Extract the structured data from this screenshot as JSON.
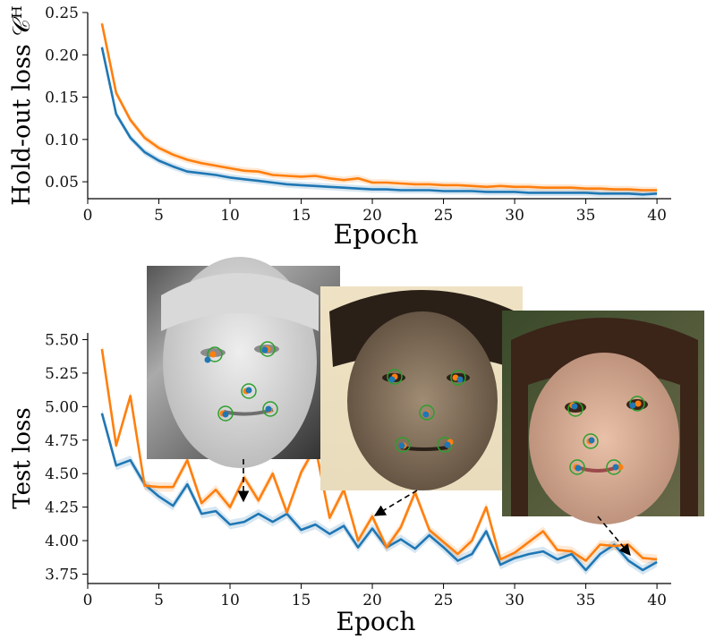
{
  "colors": {
    "series_blue": "#1f77b4",
    "series_orange": "#ff7f0e",
    "landmark_green": "#2ca02c"
  },
  "chart_data": [
    {
      "type": "line",
      "xlabel": "Epoch",
      "ylabel": "Hold-out loss 𝒞ᴴ",
      "xlim": [
        0,
        41
      ],
      "ylim": [
        0.03,
        0.25
      ],
      "xticks": [
        0,
        5,
        10,
        15,
        20,
        25,
        30,
        35,
        40
      ],
      "yticks": [
        0.05,
        0.1,
        0.15,
        0.2,
        0.25
      ],
      "ytick_labels": [
        "0.05",
        "0.10",
        "0.15",
        "0.20",
        "0.25"
      ],
      "grid": false,
      "x": [
        1,
        2,
        3,
        4,
        5,
        6,
        7,
        8,
        9,
        10,
        11,
        12,
        13,
        14,
        15,
        16,
        17,
        18,
        19,
        20,
        21,
        22,
        23,
        24,
        25,
        26,
        27,
        28,
        29,
        30,
        31,
        32,
        33,
        34,
        35,
        36,
        37,
        38,
        39,
        40
      ],
      "series": [
        {
          "color": "#1f77b4",
          "values": [
            0.209,
            0.13,
            0.102,
            0.085,
            0.075,
            0.068,
            0.062,
            0.06,
            0.058,
            0.055,
            0.053,
            0.051,
            0.049,
            0.047,
            0.046,
            0.045,
            0.044,
            0.043,
            0.042,
            0.041,
            0.041,
            0.04,
            0.04,
            0.04,
            0.039,
            0.039,
            0.039,
            0.038,
            0.038,
            0.038,
            0.037,
            0.037,
            0.037,
            0.037,
            0.037,
            0.036,
            0.036,
            0.036,
            0.035,
            0.036
          ]
        },
        {
          "color": "#ff7f0e",
          "values": [
            0.237,
            0.155,
            0.123,
            0.102,
            0.09,
            0.082,
            0.076,
            0.072,
            0.069,
            0.066,
            0.063,
            0.062,
            0.058,
            0.057,
            0.056,
            0.057,
            0.054,
            0.052,
            0.054,
            0.049,
            0.049,
            0.048,
            0.047,
            0.047,
            0.046,
            0.046,
            0.045,
            0.044,
            0.045,
            0.044,
            0.044,
            0.043,
            0.043,
            0.043,
            0.042,
            0.042,
            0.041,
            0.041,
            0.04,
            0.04
          ]
        }
      ]
    },
    {
      "type": "line",
      "xlabel": "Epoch",
      "ylabel": "Test loss",
      "xlim": [
        0,
        41
      ],
      "ylim": [
        3.68,
        5.55
      ],
      "xticks": [
        0,
        5,
        10,
        15,
        20,
        25,
        30,
        35,
        40
      ],
      "yticks": [
        3.75,
        4.0,
        4.25,
        4.5,
        4.75,
        5.0,
        5.25,
        5.5
      ],
      "ytick_labels": [
        "3.75",
        "4.00",
        "4.25",
        "4.50",
        "4.75",
        "5.00",
        "5.25",
        "5.50"
      ],
      "grid": false,
      "x": [
        1,
        2,
        3,
        4,
        5,
        6,
        7,
        8,
        9,
        10,
        11,
        12,
        13,
        14,
        15,
        16,
        17,
        18,
        19,
        20,
        21,
        22,
        23,
        24,
        25,
        26,
        27,
        28,
        29,
        30,
        31,
        32,
        33,
        34,
        35,
        36,
        37,
        38,
        39,
        40
      ],
      "series": [
        {
          "color": "#1f77b4",
          "values": [
            4.95,
            4.56,
            4.6,
            4.42,
            4.33,
            4.26,
            4.42,
            4.2,
            4.22,
            4.12,
            4.14,
            4.2,
            4.14,
            4.2,
            4.08,
            4.12,
            4.05,
            4.11,
            3.95,
            4.09,
            3.95,
            4.01,
            3.94,
            4.04,
            3.95,
            3.85,
            3.9,
            4.07,
            3.82,
            3.87,
            3.9,
            3.92,
            3.86,
            3.9,
            3.78,
            3.9,
            3.97,
            3.85,
            3.78,
            3.84
          ]
        },
        {
          "color": "#ff7f0e",
          "values": [
            5.43,
            4.71,
            5.08,
            4.41,
            4.4,
            4.4,
            4.6,
            4.28,
            4.38,
            4.25,
            4.47,
            4.3,
            4.5,
            4.21,
            4.51,
            4.7,
            4.17,
            4.38,
            4.0,
            4.18,
            3.95,
            4.1,
            4.36,
            4.08,
            3.99,
            3.9,
            4.0,
            4.25,
            3.86,
            3.91,
            3.99,
            4.07,
            3.93,
            3.92,
            3.85,
            3.97,
            3.96,
            3.97,
            3.87,
            3.86
          ]
        }
      ],
      "annotations": [
        {
          "label": "sample face 1",
          "points_to_epoch": 11
        },
        {
          "label": "sample face 2",
          "points_to_epoch": 20
        },
        {
          "label": "sample face 3",
          "points_to_epoch": 38
        }
      ]
    }
  ]
}
